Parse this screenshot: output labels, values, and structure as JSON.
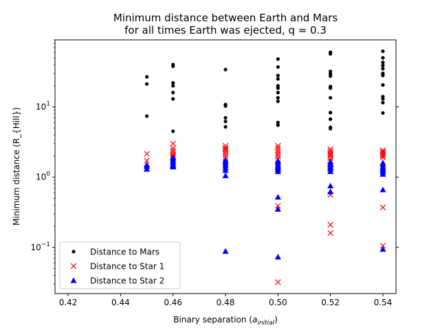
{
  "chart_data": {
    "type": "scatter",
    "title_lines": [
      "Minimum distance between Earth and Mars",
      "for all times Earth was ejected, q = 0.3"
    ],
    "xlabel": "Binary separation (",
    "xlabel_math": "a",
    "xlabel_sub": "initial",
    "xlabel_close": ")",
    "ylabel": "Minimum distance (R_{Hill})",
    "x_scale": "linear",
    "y_scale": "log",
    "xlim": [
      0.415,
      0.545
    ],
    "ylim": [
      0.022,
      90
    ],
    "x_ticks": [
      0.42,
      0.44,
      0.46,
      0.48,
      0.5,
      0.52,
      0.54
    ],
    "x_tick_labels": [
      "0.42",
      "0.44",
      "0.46",
      "0.48",
      "0.50",
      "0.52",
      "0.54"
    ],
    "y_ticks": [
      0.1,
      1,
      10
    ],
    "y_tick_labels": [
      {
        "base": "10",
        "exp": "−1"
      },
      {
        "base": "10",
        "exp": "0"
      },
      {
        "base": "10",
        "exp": "1"
      }
    ],
    "legend_position": "lower-left",
    "grid": false,
    "series": [
      {
        "name": "Distance to Mars",
        "marker": "dot",
        "color": "#000000",
        "points": [
          [
            0.45,
            26.8
          ],
          [
            0.45,
            21.2
          ],
          [
            0.45,
            7.4
          ],
          [
            0.46,
            40.0
          ],
          [
            0.46,
            38.0
          ],
          [
            0.46,
            22.0
          ],
          [
            0.46,
            20.0
          ],
          [
            0.46,
            16.0
          ],
          [
            0.46,
            13.0
          ],
          [
            0.46,
            4.5
          ],
          [
            0.48,
            34.0
          ],
          [
            0.48,
            10.8
          ],
          [
            0.48,
            10.3
          ],
          [
            0.48,
            7.0
          ],
          [
            0.48,
            6.2
          ],
          [
            0.48,
            5.2
          ],
          [
            0.5,
            48.0
          ],
          [
            0.5,
            37.0
          ],
          [
            0.5,
            28.0
          ],
          [
            0.5,
            25.0
          ],
          [
            0.5,
            20.0
          ],
          [
            0.5,
            18.5
          ],
          [
            0.5,
            16.0
          ],
          [
            0.5,
            13.5
          ],
          [
            0.5,
            12.0
          ],
          [
            0.5,
            6.0
          ],
          [
            0.5,
            5.5
          ],
          [
            0.52,
            60.0
          ],
          [
            0.52,
            57.0
          ],
          [
            0.52,
            32.0
          ],
          [
            0.52,
            29.5
          ],
          [
            0.52,
            27.5
          ],
          [
            0.52,
            19.5
          ],
          [
            0.52,
            18.5
          ],
          [
            0.52,
            13.5
          ],
          [
            0.52,
            8.3
          ],
          [
            0.52,
            6.7
          ],
          [
            0.52,
            5.1
          ],
          [
            0.52,
            4.9
          ],
          [
            0.54,
            62.0
          ],
          [
            0.54,
            50.0
          ],
          [
            0.54,
            43.0
          ],
          [
            0.54,
            39.0
          ],
          [
            0.54,
            35.0
          ],
          [
            0.54,
            30.0
          ],
          [
            0.54,
            28.0
          ],
          [
            0.54,
            20.5
          ],
          [
            0.54,
            14.0
          ],
          [
            0.54,
            13.0
          ],
          [
            0.54,
            11.5
          ],
          [
            0.54,
            8.2
          ]
        ]
      },
      {
        "name": "Distance to Star 1",
        "marker": "x",
        "color": "#ff0000",
        "points": [
          [
            0.45,
            2.15
          ],
          [
            0.45,
            1.72
          ],
          [
            0.46,
            3.0
          ],
          [
            0.46,
            2.6
          ],
          [
            0.46,
            2.4
          ],
          [
            0.46,
            2.25
          ],
          [
            0.46,
            2.1
          ],
          [
            0.46,
            2.0
          ],
          [
            0.46,
            1.9
          ],
          [
            0.48,
            2.8
          ],
          [
            0.48,
            2.6
          ],
          [
            0.48,
            2.5
          ],
          [
            0.48,
            2.35
          ],
          [
            0.48,
            2.2
          ],
          [
            0.48,
            2.05
          ],
          [
            0.48,
            1.9
          ],
          [
            0.5,
            2.8
          ],
          [
            0.5,
            2.6
          ],
          [
            0.5,
            2.4
          ],
          [
            0.5,
            2.25
          ],
          [
            0.5,
            2.1
          ],
          [
            0.5,
            1.95
          ],
          [
            0.5,
            1.8
          ],
          [
            0.5,
            0.39
          ],
          [
            0.5,
            0.032
          ],
          [
            0.52,
            2.5
          ],
          [
            0.52,
            2.35
          ],
          [
            0.52,
            2.2
          ],
          [
            0.52,
            2.1
          ],
          [
            0.52,
            2.0
          ],
          [
            0.52,
            1.85
          ],
          [
            0.52,
            1.7
          ],
          [
            0.52,
            0.56
          ],
          [
            0.52,
            0.21
          ],
          [
            0.52,
            0.16
          ],
          [
            0.54,
            2.4
          ],
          [
            0.54,
            2.3
          ],
          [
            0.54,
            2.2
          ],
          [
            0.54,
            2.1
          ],
          [
            0.54,
            2.0
          ],
          [
            0.54,
            1.9
          ],
          [
            0.54,
            0.37
          ],
          [
            0.54,
            0.105
          ]
        ]
      },
      {
        "name": "Distance to Star 2",
        "marker": "triangle",
        "color": "#0000ff",
        "points": [
          [
            0.45,
            1.5
          ],
          [
            0.45,
            1.42
          ],
          [
            0.45,
            1.3
          ],
          [
            0.46,
            1.9
          ],
          [
            0.46,
            1.8
          ],
          [
            0.46,
            1.7
          ],
          [
            0.46,
            1.6
          ],
          [
            0.46,
            1.5
          ],
          [
            0.46,
            1.45
          ],
          [
            0.46,
            1.4
          ],
          [
            0.48,
            1.75
          ],
          [
            0.48,
            1.65
          ],
          [
            0.48,
            1.55
          ],
          [
            0.48,
            1.45
          ],
          [
            0.48,
            1.35
          ],
          [
            0.48,
            1.25
          ],
          [
            0.48,
            1.05
          ],
          [
            0.48,
            0.088
          ],
          [
            0.5,
            1.7
          ],
          [
            0.5,
            1.6
          ],
          [
            0.5,
            1.5
          ],
          [
            0.5,
            1.42
          ],
          [
            0.5,
            1.35
          ],
          [
            0.5,
            1.28
          ],
          [
            0.5,
            1.2
          ],
          [
            0.5,
            0.52
          ],
          [
            0.5,
            0.35
          ],
          [
            0.5,
            0.073
          ],
          [
            0.52,
            1.65
          ],
          [
            0.52,
            1.55
          ],
          [
            0.52,
            1.5
          ],
          [
            0.52,
            1.42
          ],
          [
            0.52,
            1.36
          ],
          [
            0.52,
            1.3
          ],
          [
            0.52,
            1.2
          ],
          [
            0.52,
            0.75
          ],
          [
            0.52,
            0.62
          ],
          [
            0.54,
            1.6
          ],
          [
            0.54,
            1.5
          ],
          [
            0.54,
            1.4
          ],
          [
            0.54,
            1.32
          ],
          [
            0.54,
            1.25
          ],
          [
            0.54,
            1.18
          ],
          [
            0.54,
            1.1
          ],
          [
            0.54,
            0.66
          ],
          [
            0.54,
            0.094
          ]
        ]
      }
    ]
  }
}
